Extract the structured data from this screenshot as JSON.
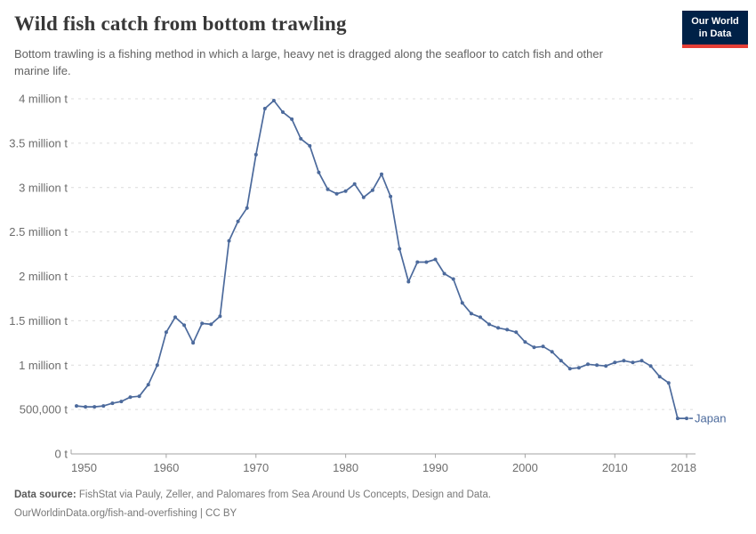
{
  "header": {
    "title": "Wild fish catch from bottom trawling",
    "subtitle": "Bottom trawling is a fishing method in which a large, heavy net is dragged along the seafloor to catch fish and other marine life.",
    "logo": {
      "line1": "Our World",
      "line2": "in Data"
    }
  },
  "colors": {
    "series_blue": "#4C6A9C",
    "logo_background": "#002147",
    "logo_stripe": "#E63E36",
    "gridline": "#dcdcdc",
    "axis": "#a3a3a3",
    "tick_text": "#6d6d6d"
  },
  "chart_data": {
    "type": "line",
    "title": "Wild fish catch from bottom trawling",
    "xlabel": "",
    "ylabel": "",
    "xlim": [
      1950,
      2018
    ],
    "ylim": [
      0,
      4000000
    ],
    "grid": "dashed-horizontal",
    "legend_position": "end-of-line-label",
    "x_ticks": [
      1950,
      1960,
      1970,
      1980,
      1990,
      2000,
      2010,
      2018
    ],
    "y_ticks": [
      {
        "value": 0,
        "label": "0 t"
      },
      {
        "value": 500000,
        "label": "500,000 t"
      },
      {
        "value": 1000000,
        "label": "1 million t"
      },
      {
        "value": 1500000,
        "label": "1.5 million t"
      },
      {
        "value": 2000000,
        "label": "2 million t"
      },
      {
        "value": 2500000,
        "label": "2.5 million t"
      },
      {
        "value": 3000000,
        "label": "3 million t"
      },
      {
        "value": 3500000,
        "label": "3.5 million t"
      },
      {
        "value": 4000000,
        "label": "4 million t"
      }
    ],
    "series": [
      {
        "name": "Japan",
        "color": "#4C6A9C",
        "unit": "t",
        "x": [
          1950,
          1951,
          1952,
          1953,
          1954,
          1955,
          1956,
          1957,
          1958,
          1959,
          1960,
          1961,
          1962,
          1963,
          1964,
          1965,
          1966,
          1967,
          1968,
          1969,
          1970,
          1971,
          1972,
          1973,
          1974,
          1975,
          1976,
          1977,
          1978,
          1979,
          1980,
          1981,
          1982,
          1983,
          1984,
          1985,
          1986,
          1987,
          1988,
          1989,
          1990,
          1991,
          1992,
          1993,
          1994,
          1995,
          1996,
          1997,
          1998,
          1999,
          2000,
          2001,
          2002,
          2003,
          2004,
          2005,
          2006,
          2007,
          2008,
          2009,
          2010,
          2011,
          2012,
          2013,
          2014,
          2015,
          2016,
          2017,
          2018
        ],
        "values": [
          540000,
          530000,
          530000,
          540000,
          570000,
          590000,
          640000,
          650000,
          780000,
          1000000,
          1370000,
          1540000,
          1450000,
          1250000,
          1470000,
          1460000,
          1550000,
          2400000,
          2620000,
          2770000,
          3370000,
          3890000,
          3980000,
          3850000,
          3770000,
          3550000,
          3470000,
          3170000,
          2980000,
          2930000,
          2960000,
          3040000,
          2890000,
          2970000,
          3150000,
          2900000,
          2310000,
          1940000,
          2160000,
          2160000,
          2190000,
          2030000,
          1970000,
          1700000,
          1580000,
          1540000,
          1460000,
          1420000,
          1400000,
          1370000,
          1260000,
          1200000,
          1210000,
          1150000,
          1050000,
          960000,
          970000,
          1010000,
          1000000,
          990000,
          1030000,
          1050000,
          1030000,
          1050000,
          990000,
          870000,
          800000,
          400000,
          400000
        ]
      }
    ]
  },
  "footer": {
    "source_label": "Data source:",
    "source_text": "FishStat via Pauly, Zeller, and Palomares from Sea Around Us Concepts, Design and Data.",
    "link": "OurWorldinData.org/fish-and-overfishing",
    "separator": "|",
    "license": "CC BY"
  }
}
